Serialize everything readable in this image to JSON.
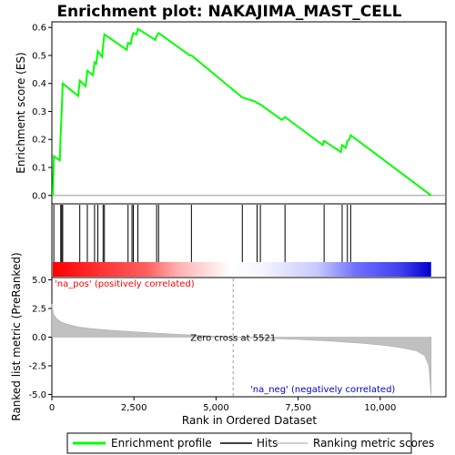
{
  "chart_data": {
    "type": "line",
    "title": "Enrichment plot: NAKAJIMA_MAST_CELL",
    "xlabel": "Rank in Ordered Dataset",
    "es_panel": {
      "ylabel": "Enrichment score (ES)",
      "ylim": [
        -0.03,
        0.62
      ],
      "yticks": [
        "0.0",
        "0.1",
        "0.2",
        "0.3",
        "0.4",
        "0.5",
        "0.6"
      ],
      "ytick_values": [
        0.0,
        0.1,
        0.2,
        0.3,
        0.4,
        0.5,
        0.6
      ],
      "series": [
        {
          "name": "Enrichment profile",
          "color": "#00ff00",
          "x": [
            0,
            30,
            60,
            240,
            270,
            300,
            330,
            800,
            850,
            1030,
            1080,
            1250,
            1300,
            1350,
            1400,
            1530,
            1560,
            1600,
            2280,
            2320,
            2400,
            2440,
            2480,
            2580,
            2620,
            3150,
            3190,
            3250,
            4200,
            4250,
            5800,
            6200,
            6250,
            6350,
            7000,
            7100,
            8250,
            8290,
            8800,
            8840,
            8950,
            9000,
            9060,
            9100,
            11550
          ],
          "y": [
            0.0,
            0.0,
            0.14,
            0.125,
            0.22,
            0.3,
            0.4,
            0.355,
            0.41,
            0.39,
            0.445,
            0.43,
            0.475,
            0.47,
            0.515,
            0.495,
            0.535,
            0.575,
            0.52,
            0.545,
            0.54,
            0.565,
            0.58,
            0.575,
            0.595,
            0.555,
            0.57,
            0.58,
            0.5,
            0.5,
            0.35,
            0.335,
            0.33,
            0.325,
            0.27,
            0.28,
            0.18,
            0.195,
            0.155,
            0.18,
            0.17,
            0.195,
            0.2,
            0.215,
            0.0
          ]
        }
      ]
    },
    "hits_panel": {
      "hit_positions": [
        60,
        270,
        300,
        330,
        850,
        1080,
        1300,
        1400,
        1560,
        1600,
        2320,
        2440,
        2480,
        2620,
        3190,
        3250,
        4250,
        5800,
        6250,
        6350,
        7100,
        8290,
        8840,
        9000,
        9100
      ],
      "gradient_left_color": "#ff0000",
      "gradient_mid_color": "#ffffff",
      "gradient_right_color": "#0000ff"
    },
    "metric_panel": {
      "ylabel": "Ranked list metric (PreRanked)",
      "ylim": [
        -5.2,
        5.2
      ],
      "yticks": [
        "5.0",
        "2.5",
        "0.0",
        "-2.5",
        "-5.0"
      ],
      "ytick_values": [
        5.0,
        2.5,
        0.0,
        -2.5,
        -5.0
      ],
      "zero_cross_label": "Zero cross at 5521",
      "zero_cross_rank": 5521,
      "pos_label": "'na_pos' (positively correlated)",
      "neg_label": "'na_neg' (negatively correlated)",
      "pos_color": "#ff0000",
      "neg_color": "#0000cc",
      "fill_color": "#c0c0c0",
      "curve_x": [
        0,
        50,
        150,
        300,
        500,
        800,
        1200,
        1800,
        2600,
        3500,
        4500,
        5521,
        6500,
        7500,
        8500,
        9500,
        10200,
        10700,
        11100,
        11350,
        11480,
        11550
      ],
      "curve_y": [
        2.9,
        2.0,
        1.6,
        1.3,
        1.1,
        0.9,
        0.75,
        0.6,
        0.45,
        0.3,
        0.15,
        0.0,
        -0.1,
        -0.2,
        -0.35,
        -0.55,
        -0.75,
        -0.95,
        -1.2,
        -1.6,
        -2.5,
        -5.1
      ]
    },
    "xticks": [
      "0",
      "2,500",
      "5,000",
      "7,500",
      "10,000"
    ],
    "xtick_values": [
      0,
      2500,
      5000,
      7500,
      10000
    ],
    "xlim": [
      0,
      12000
    ],
    "legend": [
      {
        "label": "Enrichment profile",
        "color": "#00ff00"
      },
      {
        "label": "Hits",
        "color": "#000000"
      },
      {
        "label": "Ranking metric scores",
        "color": "#c0c0c0"
      }
    ]
  }
}
